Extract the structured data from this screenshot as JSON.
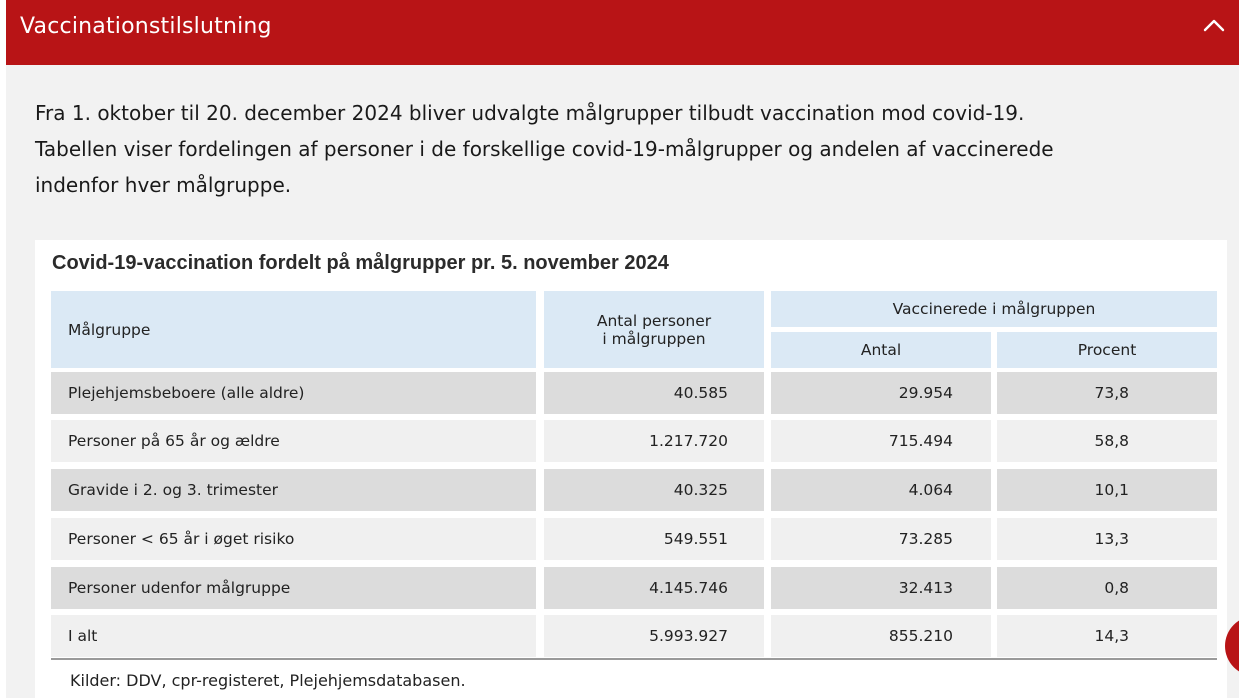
{
  "accordion": {
    "title": "Vaccinationstilslutning",
    "toggle_icon": "chevron-up-icon",
    "accent_color": "#b81416"
  },
  "intro": {
    "line1": "Fra 1. oktober til 20. december 2024 bliver udvalgte målgrupper tilbudt vaccination mod covid-19.",
    "line2": "Tabellen viser fordelingen af personer i de forskellige covid-19-målgrupper og andelen af vaccinerede",
    "line3": "indenfor hver målgruppe."
  },
  "table": {
    "caption": "Covid-19-vaccination fordelt på målgrupper pr. 5. november 2024",
    "headers": {
      "group": "Målgruppe",
      "count_line1": "Antal personer",
      "count_line2": "i målgruppen",
      "vaccinated": "Vaccinerede i målgruppen",
      "antal": "Antal",
      "procent": "Procent"
    },
    "rows": [
      {
        "group": "Plejehjemsbeboere (alle aldre)",
        "count": "40.585",
        "antal": "29.954",
        "procent": "73,8"
      },
      {
        "group": "Personer på 65 år og ældre",
        "count": "1.217.720",
        "antal": "715.494",
        "procent": "58,8"
      },
      {
        "group": "Gravide i 2. og 3. trimester",
        "count": "40.325",
        "antal": "4.064",
        "procent": "10,1"
      },
      {
        "group": "Personer < 65 år i øget risiko",
        "count": "549.551",
        "antal": "73.285",
        "procent": "13,3"
      },
      {
        "group": "Personer udenfor målgruppe",
        "count": "4.145.746",
        "antal": "32.413",
        "procent": "0,8"
      },
      {
        "group": "I alt",
        "count": "5.993.927",
        "antal": "855.210",
        "procent": "14,3"
      }
    ],
    "source": "Kilder: DDV, cpr-registeret, Plejehjemsdatabasen."
  }
}
